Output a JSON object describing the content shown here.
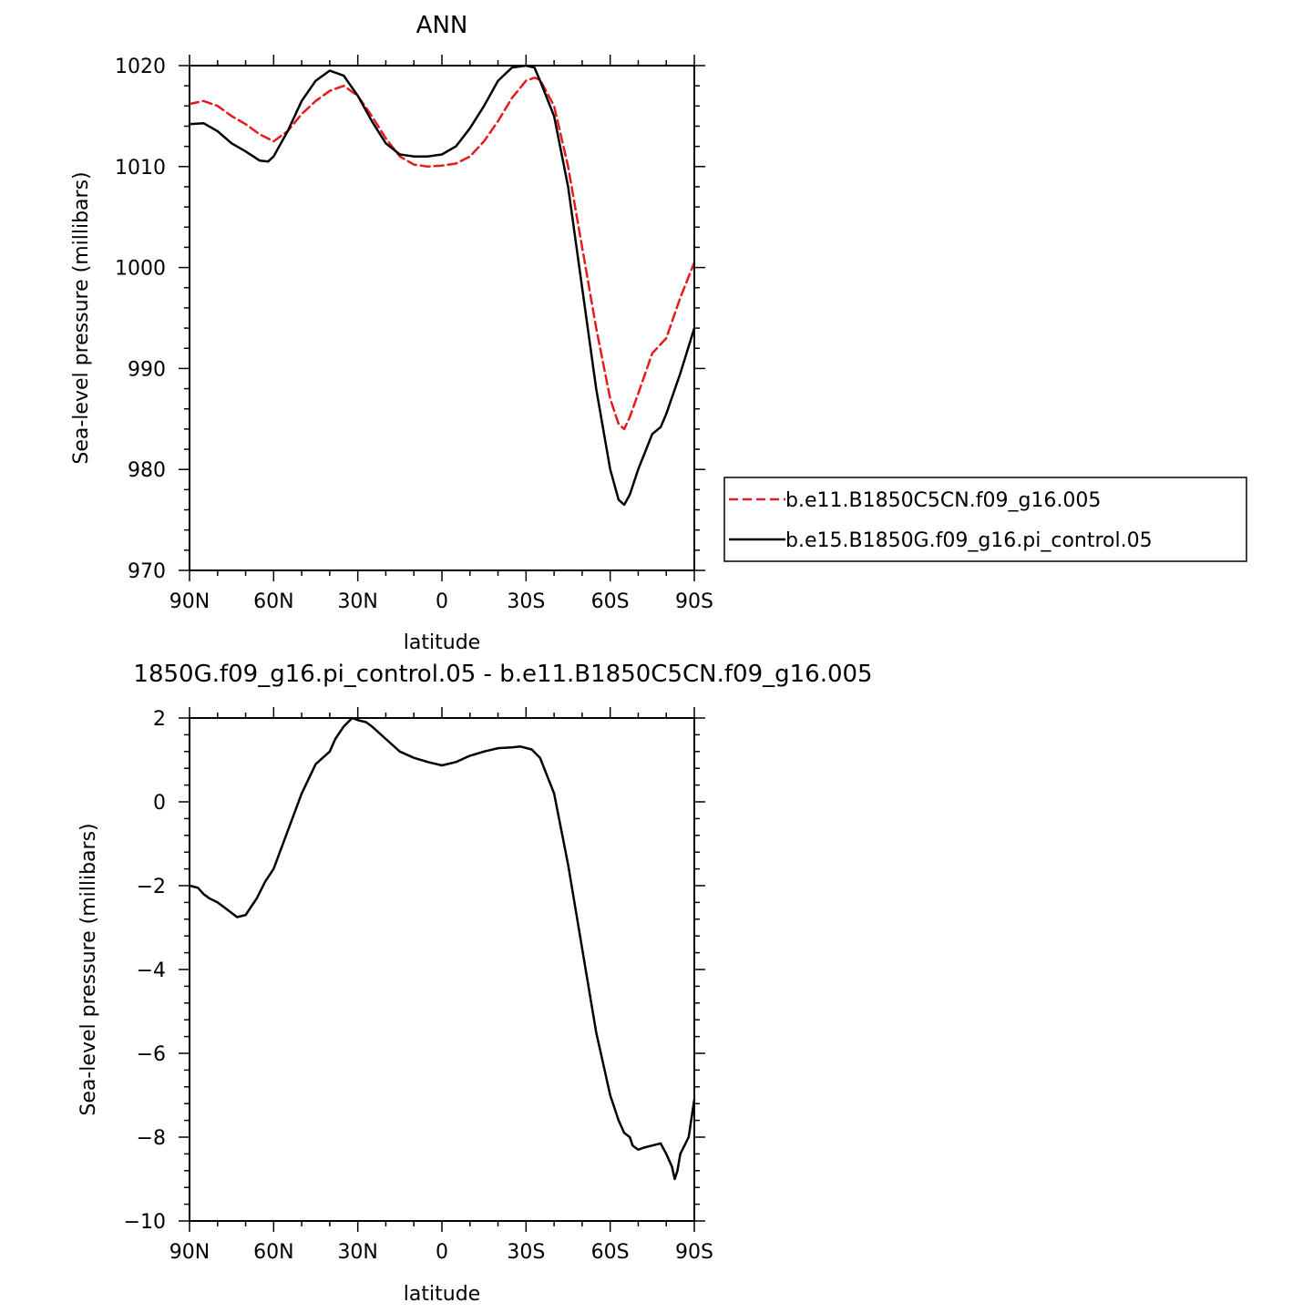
{
  "chart_data": [
    {
      "type": "line",
      "title": "ANN",
      "xlabel": "latitude",
      "ylabel": "Sea-level pressure (millibars)",
      "xlim": [
        90,
        -90
      ],
      "ylim": [
        970,
        1020
      ],
      "x_tick_values": [
        90,
        60,
        30,
        0,
        -30,
        -60,
        -90
      ],
      "x_tick_labels": [
        "90N",
        "60N",
        "30N",
        "0",
        "30S",
        "60S",
        "90S"
      ],
      "y_ticks": [
        970,
        980,
        990,
        1000,
        1010,
        1020
      ],
      "legend_position": "right",
      "series": [
        {
          "name": "b.e11.B1850C5CN.f09_g16.005",
          "color": "#e41a1c",
          "style": "dashed",
          "x": [
            90,
            85,
            80,
            75,
            70,
            65,
            60,
            55,
            50,
            45,
            40,
            35,
            30,
            25,
            20,
            15,
            10,
            5,
            0,
            -5,
            -10,
            -15,
            -20,
            -25,
            -30,
            -33,
            -35,
            -40,
            -45,
            -50,
            -55,
            -60,
            -63,
            -65,
            -67,
            -70,
            -75,
            -80,
            -85,
            -90
          ],
          "values": [
            1016.2,
            1016.5,
            1016.0,
            1015.0,
            1014.2,
            1013.2,
            1012.5,
            1013.5,
            1015.2,
            1016.5,
            1017.5,
            1018.0,
            1017.0,
            1015.0,
            1012.8,
            1011.0,
            1010.2,
            1010.0,
            1010.1,
            1010.3,
            1011.0,
            1012.5,
            1014.5,
            1016.8,
            1018.5,
            1018.8,
            1018.6,
            1016.0,
            1010.0,
            1002.0,
            994.0,
            987.0,
            984.5,
            984.0,
            985.2,
            987.5,
            991.5,
            993.0,
            997.0,
            1000.5
          ]
        },
        {
          "name": "b.e15.B1850G.f09_g16.pi_control.05",
          "color": "#000000",
          "style": "solid",
          "x": [
            90,
            85,
            80,
            75,
            70,
            65,
            62,
            60,
            55,
            50,
            45,
            40,
            35,
            30,
            25,
            20,
            15,
            10,
            5,
            0,
            -5,
            -10,
            -15,
            -20,
            -25,
            -30,
            -33,
            -35,
            -40,
            -45,
            -50,
            -55,
            -60,
            -63,
            -65,
            -67,
            -70,
            -75,
            -78,
            -80,
            -85,
            -90
          ],
          "values": [
            1014.2,
            1014.3,
            1013.5,
            1012.3,
            1011.5,
            1010.6,
            1010.5,
            1011.0,
            1013.5,
            1016.5,
            1018.5,
            1019.5,
            1019.0,
            1017.0,
            1014.5,
            1012.3,
            1011.2,
            1011.0,
            1011.0,
            1011.2,
            1012.0,
            1013.8,
            1016.0,
            1018.5,
            1019.8,
            1020.0,
            1019.8,
            1018.5,
            1015.0,
            1008.0,
            998.0,
            988.0,
            980.0,
            977.0,
            976.5,
            977.5,
            980.0,
            983.5,
            984.2,
            985.5,
            989.5,
            994.0
          ]
        }
      ]
    },
    {
      "type": "line",
      "title": "1850G.f09_g16.pi_control.05 - b.e11.B1850C5CN.f09_g16.005",
      "xlabel": "latitude",
      "ylabel": "Sea-level pressure (millibars)",
      "xlim": [
        90,
        -90
      ],
      "ylim": [
        -10,
        2
      ],
      "x_tick_values": [
        90,
        60,
        30,
        0,
        -30,
        -60,
        -90
      ],
      "x_tick_labels": [
        "90N",
        "60N",
        "30N",
        "0",
        "30S",
        "60S",
        "90S"
      ],
      "y_ticks": [
        -10,
        -8,
        -6,
        -4,
        -2,
        0,
        2
      ],
      "y_tick_labels": [
        "−10",
        "−8",
        "−6",
        "−4",
        "−2",
        "0",
        "2"
      ],
      "series": [
        {
          "color": "#000000",
          "style": "solid",
          "x": [
            90,
            87,
            85,
            83,
            80,
            77,
            73,
            70,
            68,
            66,
            63,
            60,
            55,
            50,
            45,
            40,
            38,
            35,
            32,
            30,
            27,
            25,
            20,
            15,
            10,
            5,
            0,
            -5,
            -10,
            -15,
            -20,
            -25,
            -28,
            -32,
            -35,
            -40,
            -45,
            -50,
            -55,
            -60,
            -63,
            -65,
            -67,
            -68,
            -70,
            -72,
            -75,
            -78,
            -80,
            -82,
            -83,
            -84,
            -85,
            -88,
            -90
          ],
          "values": [
            -2.0,
            -2.05,
            -2.2,
            -2.3,
            -2.4,
            -2.55,
            -2.75,
            -2.7,
            -2.5,
            -2.3,
            -1.9,
            -1.6,
            -0.7,
            0.2,
            0.9,
            1.2,
            1.5,
            1.8,
            2.0,
            1.95,
            1.9,
            1.8,
            1.5,
            1.2,
            1.05,
            0.95,
            0.87,
            0.95,
            1.1,
            1.2,
            1.28,
            1.3,
            1.32,
            1.25,
            1.05,
            0.2,
            -1.5,
            -3.5,
            -5.5,
            -7.0,
            -7.6,
            -7.9,
            -8.0,
            -8.2,
            -8.3,
            -8.25,
            -8.2,
            -8.15,
            -8.4,
            -8.7,
            -9.0,
            -8.8,
            -8.4,
            -8.0,
            -7.1
          ]
        }
      ]
    }
  ]
}
